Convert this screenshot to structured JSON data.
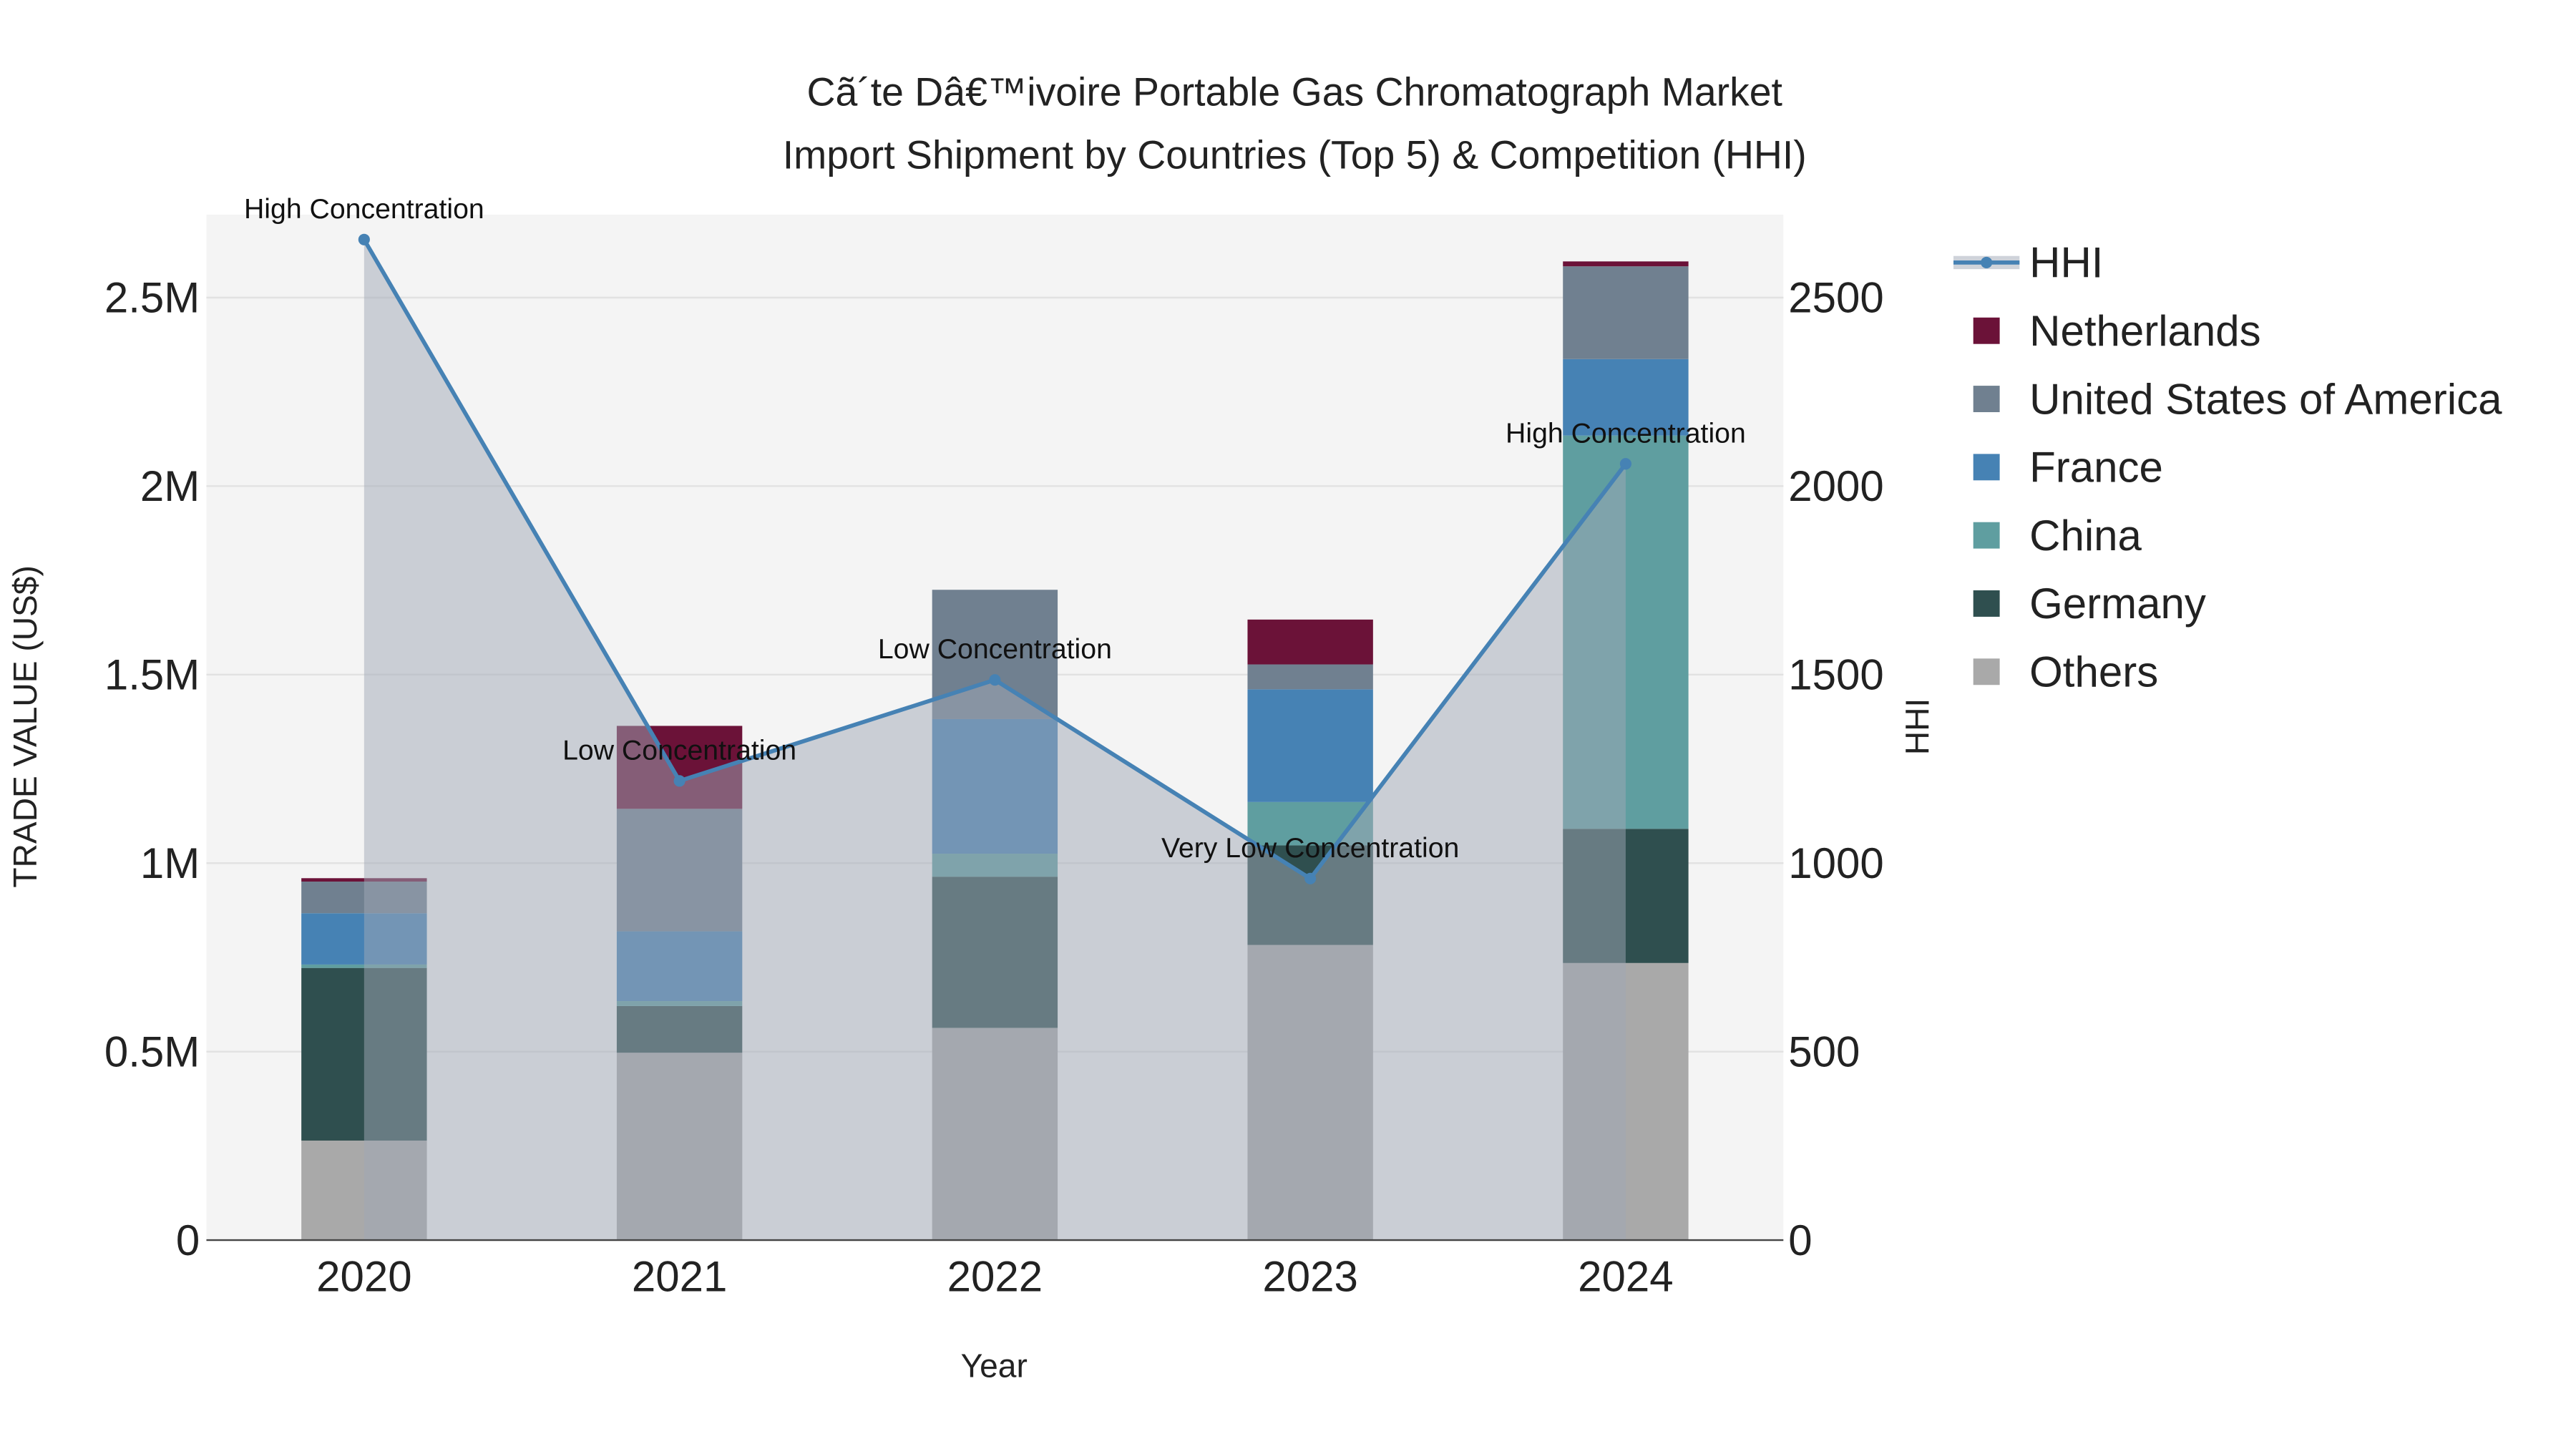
{
  "chart_data": {
    "type": "bar",
    "title_line1": "Cã´te Dâ€™ivoire Portable Gas Chromatograph Market",
    "title_line2": "Import Shipment by Countries (Top 5) & Competition (HHI)",
    "xlabel": "Year",
    "ylabel": "TRADE VALUE (US$)",
    "y2label": "HHI",
    "categories": [
      "2020",
      "2021",
      "2022",
      "2023",
      "2024"
    ],
    "ylim": [
      0,
      2720000
    ],
    "y2lim": [
      0,
      2720
    ],
    "yticks": [
      {
        "v": 0,
        "label": "0"
      },
      {
        "v": 500000,
        "label": "0.5M"
      },
      {
        "v": 1000000,
        "label": "1M"
      },
      {
        "v": 1500000,
        "label": "1.5M"
      },
      {
        "v": 2000000,
        "label": "2M"
      },
      {
        "v": 2500000,
        "label": "2.5M"
      }
    ],
    "y2ticks": [
      {
        "v": 0,
        "label": "0"
      },
      {
        "v": 500,
        "label": "500"
      },
      {
        "v": 1000,
        "label": "1000"
      },
      {
        "v": 1500,
        "label": "1500"
      },
      {
        "v": 2000,
        "label": "2000"
      },
      {
        "v": 2500,
        "label": "2500"
      }
    ],
    "series": [
      {
        "name": "Others",
        "color": "#a9a9a9",
        "values": [
          264000,
          497000,
          563000,
          783000,
          735000
        ]
      },
      {
        "name": "Germany",
        "color": "#2f4f4f",
        "values": [
          458000,
          124000,
          401000,
          264000,
          356000
        ]
      },
      {
        "name": "China",
        "color": "#5f9ea0",
        "values": [
          9000,
          13000,
          61000,
          115000,
          1043000
        ]
      },
      {
        "name": "France",
        "color": "#4682b4",
        "values": [
          136000,
          185000,
          357000,
          299000,
          203000
        ]
      },
      {
        "name": "United States of America",
        "color": "#708090",
        "values": [
          84000,
          325000,
          343000,
          66000,
          246000
        ]
      },
      {
        "name": "Netherlands",
        "color": "#6b1238",
        "values": [
          9000,
          220000,
          0,
          119000,
          13000
        ]
      }
    ],
    "hhi": {
      "name": "HHI",
      "color": "#4682b4",
      "values": [
        2654,
        1218,
        1486,
        959,
        2059
      ],
      "annotations": [
        "High Concentration",
        "Low Concentration",
        "Low Concentration",
        "Very Low Concentration",
        "High Concentration"
      ]
    },
    "legend_order": [
      "HHI",
      "Netherlands",
      "United States of America",
      "France",
      "China",
      "Germany",
      "Others"
    ],
    "legend_placement": "right",
    "grid": true
  }
}
